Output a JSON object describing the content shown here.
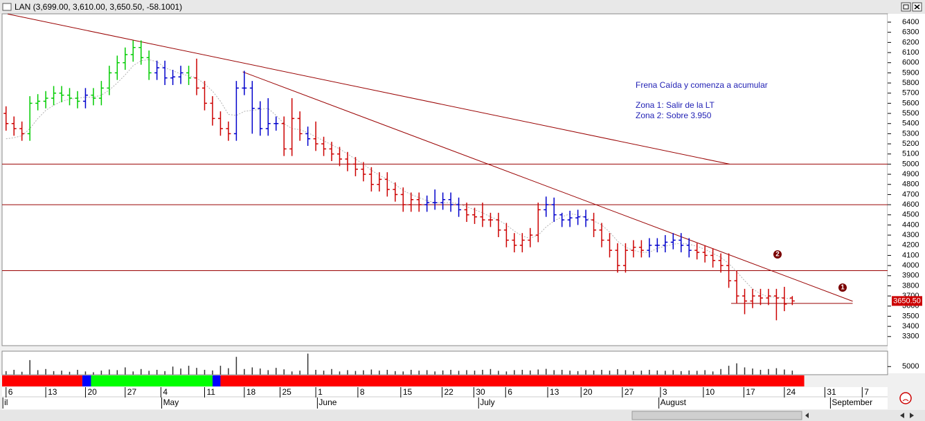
{
  "chart_data": {
    "type": "ohlc",
    "title": "LAN (3,699.00, 3,610.00, 3,650.50, -58.1001)",
    "open": [
      5500,
      5400,
      5350,
      5300,
      5600,
      5620,
      5650,
      5700,
      5680,
      5650,
      5620,
      5680,
      5650,
      5750,
      5900,
      6000,
      6080,
      6150,
      6050,
      5900,
      5950,
      5850,
      5860,
      5900,
      5850,
      5750,
      5600,
      5450,
      5350,
      5300,
      5750,
      5750,
      5550,
      5350,
      5400,
      5400,
      5150,
      5450,
      5300,
      5250,
      5200,
      5150,
      5100,
      5050,
      5000,
      4950,
      4900,
      4800,
      4850,
      4750,
      4700,
      4600,
      4650,
      4600,
      4620,
      4620,
      4650,
      4600,
      4550,
      4500,
      4480,
      4450,
      4450,
      4350,
      4250,
      4200,
      4250,
      4300,
      4550,
      4600,
      4500,
      4450,
      4470,
      4480,
      4450,
      4350,
      4250,
      4150,
      4000,
      4150,
      4180,
      4150,
      4200,
      4200,
      4230,
      4250,
      4200,
      4150,
      4130,
      4100,
      4050,
      4000,
      3850,
      3700,
      3650,
      3700,
      3680,
      3700,
      3680,
      3680
    ],
    "high": [
      5570,
      5470,
      5420,
      5670,
      5690,
      5720,
      5770,
      5770,
      5750,
      5720,
      5750,
      5750,
      5820,
      5970,
      6070,
      6150,
      6220,
      6220,
      6120,
      6020,
      6020,
      5930,
      5970,
      5970,
      6040,
      5820,
      5670,
      5520,
      5420,
      5820,
      5920,
      5820,
      5620,
      5650,
      5470,
      5470,
      5650,
      5520,
      5370,
      5420,
      5270,
      5220,
      5170,
      5120,
      5070,
      5020,
      4970,
      4920,
      4920,
      4820,
      4770,
      4720,
      4720,
      4690,
      4750,
      4720,
      4720,
      4670,
      4620,
      4570,
      4620,
      4520,
      4520,
      4420,
      4320,
      4320,
      4370,
      4620,
      4680,
      4670,
      4520,
      4540,
      4550,
      4550,
      4520,
      4420,
      4320,
      4220,
      4220,
      4250,
      4250,
      4270,
      4270,
      4300,
      4320,
      4320,
      4270,
      4220,
      4200,
      4170,
      4120,
      4120,
      3950,
      3770,
      3770,
      3770,
      3770,
      3770,
      3790,
      3699
    ],
    "low": [
      5330,
      5280,
      5230,
      5230,
      5530,
      5550,
      5580,
      5610,
      5580,
      5550,
      5550,
      5580,
      5580,
      5680,
      5830,
      5930,
      6010,
      5980,
      5830,
      5830,
      5780,
      5780,
      5790,
      5780,
      5680,
      5530,
      5380,
      5280,
      5230,
      5230,
      5680,
      5300,
      5280,
      5280,
      5330,
      5080,
      5080,
      5230,
      5180,
      5130,
      5080,
      5030,
      4980,
      4930,
      4880,
      4830,
      4730,
      4730,
      4680,
      4630,
      4530,
      4530,
      4530,
      4530,
      4550,
      4550,
      4530,
      4480,
      4430,
      4410,
      4380,
      4380,
      4280,
      4180,
      4130,
      4130,
      4180,
      4230,
      4480,
      4430,
      4380,
      4380,
      4400,
      4380,
      4280,
      4180,
      4080,
      3930,
      3930,
      4080,
      4080,
      4080,
      4130,
      4130,
      4160,
      4130,
      4080,
      4060,
      4030,
      3980,
      3930,
      3780,
      3630,
      3520,
      3580,
      3610,
      3610,
      3460,
      3550,
      3610
    ],
    "close": [
      5400,
      5350,
      5300,
      5600,
      5620,
      5650,
      5700,
      5680,
      5650,
      5620,
      5680,
      5650,
      5750,
      5900,
      6000,
      6080,
      6150,
      6050,
      5900,
      5950,
      5850,
      5860,
      5900,
      5850,
      5750,
      5600,
      5450,
      5350,
      5300,
      5750,
      5750,
      5550,
      5350,
      5400,
      5400,
      5150,
      5450,
      5300,
      5250,
      5200,
      5150,
      5100,
      5050,
      5000,
      4950,
      4900,
      4800,
      4850,
      4750,
      4700,
      4600,
      4650,
      4600,
      4620,
      4620,
      4650,
      4600,
      4550,
      4500,
      4480,
      4450,
      4450,
      4350,
      4250,
      4200,
      4250,
      4300,
      4550,
      4600,
      4500,
      4450,
      4470,
      4480,
      4450,
      4350,
      4250,
      4150,
      4000,
      4150,
      4180,
      4150,
      4200,
      4200,
      4230,
      4250,
      4200,
      4150,
      4130,
      4100,
      4050,
      4000,
      3850,
      3700,
      3650,
      3700,
      3680,
      3700,
      3680,
      3620,
      3650.5
    ],
    "bar_colors": [
      "#cc0000",
      "#cc0000",
      "#cc0000",
      "#00cc00",
      "#00cc00",
      "#00cc00",
      "#00cc00",
      "#00cc00",
      "#00cc00",
      "#00cc00",
      "#0000cc",
      "#00cc00",
      "#00cc00",
      "#00cc00",
      "#00cc00",
      "#00cc00",
      "#00cc00",
      "#00cc00",
      "#00cc00",
      "#0000cc",
      "#0000cc",
      "#0000cc",
      "#0000cc",
      "#00cc00",
      "#cc0000",
      "#cc0000",
      "#cc0000",
      "#cc0000",
      "#cc0000",
      "#0000cc",
      "#0000cc",
      "#0000cc",
      "#0000cc",
      "#0000cc",
      "#0000cc",
      "#cc0000",
      "#cc0000",
      "#cc0000",
      "#0000cc",
      "#cc0000",
      "#cc0000",
      "#cc0000",
      "#cc0000",
      "#cc0000",
      "#cc0000",
      "#cc0000",
      "#cc0000",
      "#cc0000",
      "#cc0000",
      "#cc0000",
      "#cc0000",
      "#cc0000",
      "#cc0000",
      "#0000cc",
      "#0000cc",
      "#0000cc",
      "#0000cc",
      "#0000cc",
      "#cc0000",
      "#cc0000",
      "#cc0000",
      "#cc0000",
      "#cc0000",
      "#cc0000",
      "#cc0000",
      "#cc0000",
      "#cc0000",
      "#cc0000",
      "#0000cc",
      "#0000cc",
      "#0000cc",
      "#0000cc",
      "#0000cc",
      "#0000cc",
      "#cc0000",
      "#cc0000",
      "#cc0000",
      "#cc0000",
      "#cc0000",
      "#cc0000",
      "#cc0000",
      "#0000cc",
      "#0000cc",
      "#0000cc",
      "#0000cc",
      "#0000cc",
      "#0000cc",
      "#cc0000",
      "#cc0000",
      "#cc0000",
      "#cc0000",
      "#cc0000",
      "#cc0000",
      "#cc0000",
      "#cc0000",
      "#cc0000",
      "#cc0000",
      "#cc0000",
      "#cc0000",
      "#cc0000"
    ],
    "moving_average": {
      "color": "#b0b0b0",
      "values": [
        5250,
        5260,
        5280,
        5350,
        5450,
        5530,
        5580,
        5620,
        5640,
        5650,
        5660,
        5660,
        5680,
        5730,
        5800,
        5880,
        5970,
        6020,
        6030,
        6010,
        5950,
        5920,
        5890,
        5870,
        5850,
        5790,
        5720,
        5620,
        5490,
        5480,
        5520,
        5530,
        5540,
        5550,
        5480,
        5400,
        5350,
        5340,
        5310,
        5270,
        5230,
        5190,
        5150,
        5100,
        5050,
        5000,
        4940,
        4890,
        4850,
        4800,
        4740,
        4700,
        4670,
        4640,
        4620,
        4620,
        4620,
        4610,
        4580,
        4550,
        4520,
        4480,
        4450,
        4400,
        4340,
        4290,
        4270,
        4300,
        4380,
        4440,
        4480,
        4510,
        4500,
        4470,
        4440,
        4400,
        4330,
        4240,
        4180,
        4150,
        4130,
        4130,
        4170,
        4190,
        4210,
        4220,
        4210,
        4190,
        4160,
        4120,
        4080,
        4020,
        3940,
        3850,
        3770,
        3720,
        3690,
        3690,
        3680,
        3670
      ]
    },
    "xlim": [
      -0.5,
      111
    ],
    "xticks": [
      {
        "value": 0,
        "label": "6"
      },
      {
        "value": 5,
        "label": "13"
      },
      {
        "value": 10,
        "label": "20"
      },
      {
        "value": 15,
        "label": "27"
      },
      {
        "value": 19.5,
        "label": "4"
      },
      {
        "value": 25,
        "label": "11"
      },
      {
        "value": 30,
        "label": "18"
      },
      {
        "value": 34.5,
        "label": "25"
      },
      {
        "value": 39,
        "label": "1"
      },
      {
        "value": 44.3,
        "label": "8"
      },
      {
        "value": 49.7,
        "label": "15"
      },
      {
        "value": 54.9,
        "label": "22"
      },
      {
        "value": 58.9,
        "label": "30"
      },
      {
        "value": 62.9,
        "label": "6"
      },
      {
        "value": 68.2,
        "label": "13"
      },
      {
        "value": 72.4,
        "label": "20"
      },
      {
        "value": 77.6,
        "label": "27"
      },
      {
        "value": 82.4,
        "label": "3"
      },
      {
        "value": 87.8,
        "label": "10"
      },
      {
        "value": 92.9,
        "label": "17"
      },
      {
        "value": 98,
        "label": "24"
      },
      {
        "value": 103.1,
        "label": "31"
      },
      {
        "value": 107.8,
        "label": "7"
      }
    ],
    "month_labels": [
      {
        "value": -0.4,
        "label": "il"
      },
      {
        "value": 19.6,
        "label": "May"
      },
      {
        "value": 39.2,
        "label": "June"
      },
      {
        "value": 59.5,
        "label": "July"
      },
      {
        "value": 82.2,
        "label": "August"
      },
      {
        "value": 103.8,
        "label": "September"
      }
    ],
    "ylim": [
      3210,
      6482
    ],
    "yticks": [
      3300,
      3400,
      3500,
      3600,
      3700,
      3800,
      3900,
      4000,
      4100,
      4200,
      4300,
      4400,
      4500,
      4600,
      4700,
      4800,
      4900,
      5000,
      5100,
      5200,
      5300,
      5400,
      5500,
      5600,
      5700,
      5800,
      5900,
      6000,
      6100,
      6200,
      6300,
      6400
    ],
    "line_color": "#990000",
    "horizontal_lines": [
      5000,
      4600,
      3950
    ],
    "trend_lines": [
      {
        "x": [
          0.2,
          91.1
        ],
        "y": [
          6480,
          5000
        ]
      },
      {
        "x": [
          29.8,
          106.6
        ],
        "y": [
          5910,
          3648
        ]
      },
      {
        "x": [
          91.3,
          106.6
        ],
        "y": [
          3627,
          3627
        ]
      }
    ],
    "last_price_label": "3650.50",
    "annotations": [
      "Frena Caída y comenza a acumular",
      "Zona 1: Salir de la LT",
      "Zona 2: Sobre 3.950"
    ],
    "markers": [
      "2",
      "1"
    ],
    "volume": {
      "color": "#333333",
      "ylim": [
        0,
        14500
      ],
      "yticks": [
        5000
      ],
      "values": [
        2200,
        3000,
        1800,
        9000,
        2800,
        3500,
        2200,
        2500,
        1800,
        3000,
        2000,
        1500,
        2500,
        3200,
        2800,
        4500,
        2000,
        3500,
        2400,
        3000,
        2200,
        5000,
        3800,
        5500,
        4200,
        3000,
        2600,
        5500,
        4000,
        11000,
        3500,
        4500,
        3800,
        2800,
        4200,
        3300,
        2000,
        2500,
        13000,
        3000,
        2500,
        3500,
        2000,
        2800,
        2300,
        2700,
        3200,
        2500,
        3000,
        2200,
        2000,
        3000,
        2500,
        2800,
        2000,
        2600,
        3000,
        2400,
        2800,
        2500,
        3000,
        3500,
        2400,
        2000,
        2800,
        3000,
        2600,
        3200,
        3600,
        2800,
        3000,
        2500,
        2200,
        2800,
        2600,
        3000,
        2500,
        3400,
        2800,
        2200,
        2500,
        3000,
        2600,
        2400,
        2800,
        2200,
        2600,
        2400,
        2800,
        2000,
        3500,
        5500,
        7000,
        4500,
        3800,
        3000,
        3500,
        4000,
        3200,
        2500
      ]
    },
    "strip": [
      {
        "from": -0.5,
        "to": 9.6,
        "color": "#ff0000"
      },
      {
        "from": 9.6,
        "to": 10.7,
        "color": "#0000ff"
      },
      {
        "from": 10.7,
        "to": 26,
        "color": "#00ff00"
      },
      {
        "from": 26,
        "to": 27,
        "color": "#0000ff"
      },
      {
        "from": 27,
        "to": 100.5,
        "color": "#ff0000"
      }
    ]
  }
}
